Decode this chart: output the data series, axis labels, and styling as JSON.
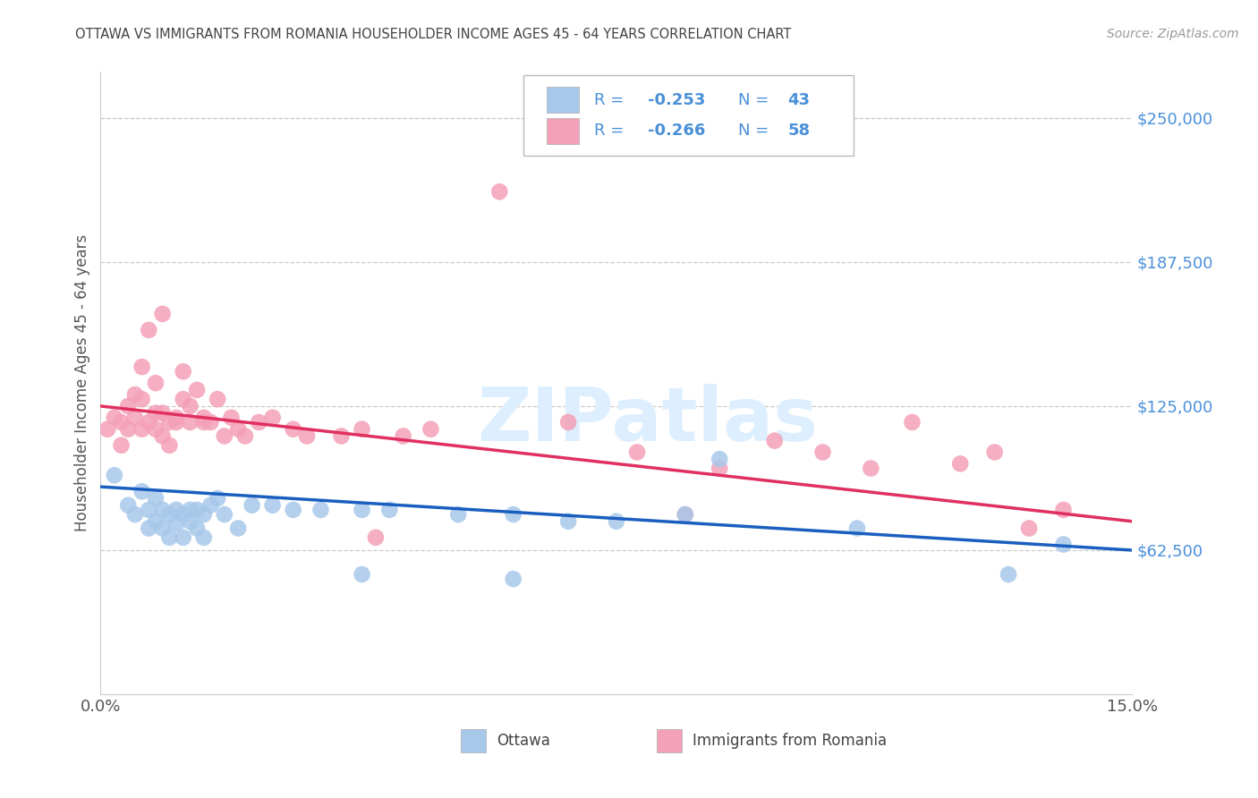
{
  "title": "OTTAWA VS IMMIGRANTS FROM ROMANIA HOUSEHOLDER INCOME AGES 45 - 64 YEARS CORRELATION CHART",
  "source": "Source: ZipAtlas.com",
  "ylabel": "Householder Income Ages 45 - 64 years",
  "xlim": [
    0.0,
    0.15
  ],
  "ylim": [
    0,
    270000
  ],
  "ytick_vals": [
    62500,
    125000,
    187500,
    250000
  ],
  "ytick_labels": [
    "$62,500",
    "$125,000",
    "$187,500",
    "$250,000"
  ],
  "xtick_vals": [
    0.0,
    0.025,
    0.05,
    0.075,
    0.1,
    0.125,
    0.15
  ],
  "xtick_labels": [
    "0.0%",
    "",
    "",
    "",
    "",
    "",
    "15.0%"
  ],
  "grid_color": "#cccccc",
  "bg_color": "#ffffff",
  "ottawa_dot_color": "#a8c8ea",
  "romania_dot_color": "#f4a0b8",
  "ottawa_line_color": "#1a5fbf",
  "romania_line_color": "#e03060",
  "legend_blue_color": "#4a90d9",
  "legend_pink_color": "#e04070",
  "legend_all_blue": "#4a90d9",
  "yaxis_tick_color": "#4a90d9",
  "title_color": "#444444",
  "source_color": "#999999",
  "watermark_color": "#ddeeff",
  "watermark": "ZIPatlas",
  "bottom_legend_color": "#444444",
  "ottawa_x": [
    0.002,
    0.004,
    0.005,
    0.006,
    0.007,
    0.007,
    0.008,
    0.008,
    0.009,
    0.009,
    0.01,
    0.01,
    0.011,
    0.011,
    0.012,
    0.012,
    0.013,
    0.013,
    0.014,
    0.014,
    0.015,
    0.015,
    0.016,
    0.017,
    0.018,
    0.02,
    0.022,
    0.025,
    0.028,
    0.032,
    0.038,
    0.042,
    0.052,
    0.06,
    0.068,
    0.075,
    0.085,
    0.11,
    0.132,
    0.14,
    0.09,
    0.06,
    0.038
  ],
  "ottawa_y": [
    95000,
    82000,
    78000,
    88000,
    72000,
    80000,
    75000,
    85000,
    80000,
    72000,
    78000,
    68000,
    80000,
    74000,
    78000,
    68000,
    80000,
    75000,
    80000,
    72000,
    78000,
    68000,
    82000,
    85000,
    78000,
    72000,
    82000,
    82000,
    80000,
    80000,
    80000,
    80000,
    78000,
    78000,
    75000,
    75000,
    78000,
    72000,
    52000,
    65000,
    102000,
    50000,
    52000
  ],
  "romania_x": [
    0.001,
    0.002,
    0.003,
    0.003,
    0.004,
    0.004,
    0.005,
    0.005,
    0.006,
    0.006,
    0.006,
    0.007,
    0.007,
    0.008,
    0.008,
    0.008,
    0.009,
    0.009,
    0.009,
    0.01,
    0.01,
    0.011,
    0.011,
    0.012,
    0.012,
    0.013,
    0.013,
    0.014,
    0.015,
    0.015,
    0.016,
    0.017,
    0.018,
    0.019,
    0.02,
    0.021,
    0.023,
    0.025,
    0.028,
    0.03,
    0.035,
    0.038,
    0.04,
    0.044,
    0.048,
    0.058,
    0.068,
    0.078,
    0.085,
    0.09,
    0.098,
    0.105,
    0.112,
    0.118,
    0.125,
    0.13,
    0.135,
    0.14
  ],
  "romania_y": [
    115000,
    120000,
    118000,
    108000,
    125000,
    115000,
    130000,
    120000,
    128000,
    142000,
    115000,
    158000,
    118000,
    135000,
    122000,
    115000,
    165000,
    112000,
    122000,
    118000,
    108000,
    120000,
    118000,
    128000,
    140000,
    118000,
    125000,
    132000,
    120000,
    118000,
    118000,
    128000,
    112000,
    120000,
    115000,
    112000,
    118000,
    120000,
    115000,
    112000,
    112000,
    115000,
    68000,
    112000,
    115000,
    218000,
    118000,
    105000,
    78000,
    98000,
    110000,
    105000,
    98000,
    118000,
    100000,
    105000,
    72000,
    80000
  ]
}
